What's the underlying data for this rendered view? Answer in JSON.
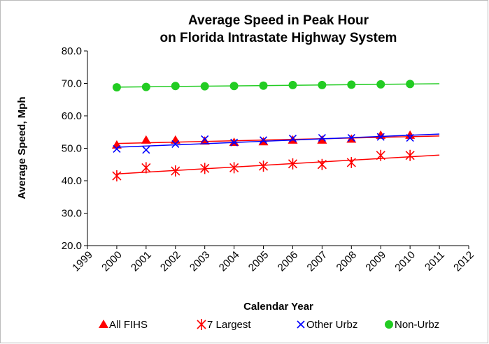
{
  "chart_data": {
    "type": "scatter",
    "title": [
      "Average Speed in Peak Hour",
      "on Florida Intrastate Highway System"
    ],
    "x_label": "Calendar Year",
    "y_label": "Average Speed, Mph",
    "x": [
      2000,
      2001,
      2002,
      2003,
      2004,
      2005,
      2006,
      2007,
      2008,
      2009,
      2010
    ],
    "series": [
      {
        "name": "All FIHS",
        "color": "#ff0000",
        "marker": "triangle",
        "values": [
          51.0,
          52.5,
          52.5,
          52.2,
          51.8,
          52.0,
          52.5,
          52.5,
          52.8,
          54.0,
          54.0
        ]
      },
      {
        "name": "7 Largest",
        "color": "#ff0000",
        "marker": "asterisk",
        "values": [
          41.5,
          44.0,
          43.0,
          43.8,
          44.0,
          44.5,
          45.2,
          45.0,
          45.6,
          47.8,
          47.8
        ]
      },
      {
        "name": "Other Urbz",
        "color": "#0000ff",
        "marker": "x",
        "values": [
          49.8,
          49.5,
          51.3,
          52.8,
          51.8,
          52.5,
          53.0,
          53.2,
          53.2,
          53.5,
          53.2
        ]
      },
      {
        "name": "Non-Urbz",
        "color": "#22cc22",
        "marker": "circle",
        "values": [
          68.8,
          68.9,
          69.2,
          69.1,
          69.2,
          69.3,
          69.5,
          69.5,
          69.6,
          69.7,
          69.8
        ]
      }
    ],
    "trendline": true,
    "trend_range": [
      2000,
      2011
    ],
    "xlim": [
      1999,
      2012
    ],
    "xticks": [
      1999,
      2000,
      2001,
      2002,
      2003,
      2004,
      2005,
      2006,
      2007,
      2008,
      2009,
      2010,
      2011,
      2012
    ],
    "ylim": [
      20,
      80
    ],
    "yticks": [
      {
        "value": 20,
        "label": "20.0"
      },
      {
        "value": 30,
        "label": "30.0"
      },
      {
        "value": 40,
        "label": "40.0"
      },
      {
        "value": 50,
        "label": "50.0"
      },
      {
        "value": 60,
        "label": "60.0"
      },
      {
        "value": 70,
        "label": "70.0"
      },
      {
        "value": 80,
        "label": "80.0"
      }
    ],
    "grid": false,
    "legend": "bottom"
  }
}
